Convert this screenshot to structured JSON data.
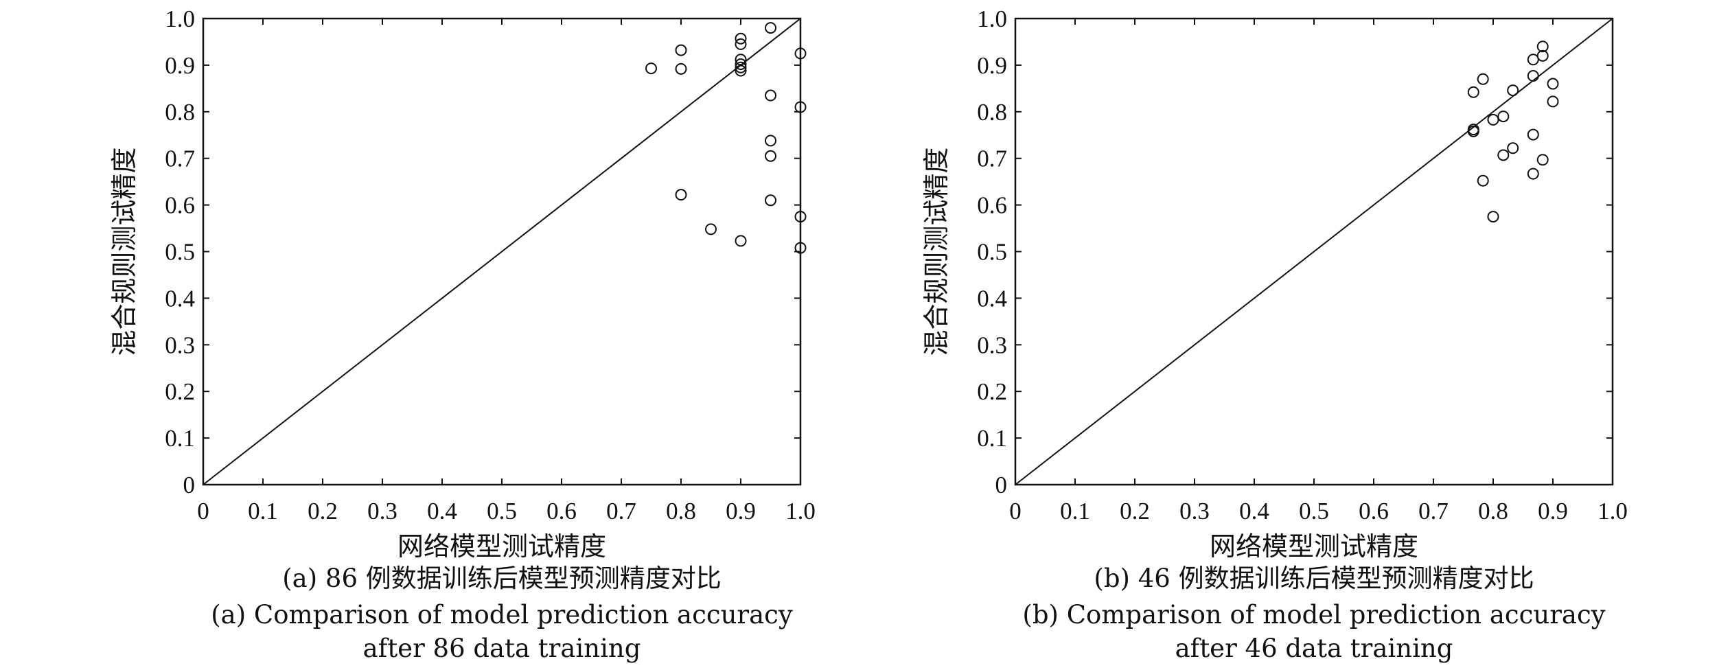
{
  "chart_data": [
    {
      "type": "scatter",
      "xlabel": "网络模型测试精度",
      "ylabel": "混合规则测试精度",
      "xlim": [
        0,
        1.0
      ],
      "ylim": [
        0,
        1.0
      ],
      "x_ticks": [
        "0",
        "0.1",
        "0.2",
        "0.3",
        "0.4",
        "0.5",
        "0.6",
        "0.7",
        "0.8",
        "0.9",
        "1.0"
      ],
      "y_ticks": [
        "0",
        "0.1",
        "0.2",
        "0.3",
        "0.4",
        "0.5",
        "0.6",
        "0.7",
        "0.8",
        "0.9",
        "1.0"
      ],
      "grid": false,
      "reference_line": "y = x",
      "caption": [
        "(a) 86 例数据训练后模型预测精度对比",
        "(a) Comparison of model prediction accuracy",
        "after 86 data training"
      ],
      "points": [
        {
          "x": 0.75,
          "y": 0.893
        },
        {
          "x": 0.8,
          "y": 0.932
        },
        {
          "x": 0.8,
          "y": 0.892
        },
        {
          "x": 0.8,
          "y": 0.622
        },
        {
          "x": 0.85,
          "y": 0.548
        },
        {
          "x": 0.9,
          "y": 0.957
        },
        {
          "x": 0.9,
          "y": 0.945
        },
        {
          "x": 0.9,
          "y": 0.912
        },
        {
          "x": 0.9,
          "y": 0.902
        },
        {
          "x": 0.9,
          "y": 0.895
        },
        {
          "x": 0.9,
          "y": 0.888
        },
        {
          "x": 0.9,
          "y": 0.523
        },
        {
          "x": 0.95,
          "y": 0.98
        },
        {
          "x": 0.95,
          "y": 0.835
        },
        {
          "x": 0.95,
          "y": 0.738
        },
        {
          "x": 0.95,
          "y": 0.705
        },
        {
          "x": 0.95,
          "y": 0.61
        },
        {
          "x": 1.0,
          "y": 0.925
        },
        {
          "x": 1.0,
          "y": 0.81
        },
        {
          "x": 1.0,
          "y": 0.575
        },
        {
          "x": 1.0,
          "y": 0.508
        }
      ]
    },
    {
      "type": "scatter",
      "xlabel": "网络模型测试精度",
      "ylabel": "混合规则测试精度",
      "xlim": [
        0,
        1.0
      ],
      "ylim": [
        0,
        1.0
      ],
      "x_ticks": [
        "0",
        "0.1",
        "0.2",
        "0.3",
        "0.4",
        "0.5",
        "0.6",
        "0.7",
        "0.8",
        "0.9",
        "1.0"
      ],
      "y_ticks": [
        "0",
        "0.1",
        "0.2",
        "0.3",
        "0.4",
        "0.5",
        "0.6",
        "0.7",
        "0.8",
        "0.9",
        "1.0"
      ],
      "grid": false,
      "reference_line": "y = x",
      "caption": [
        "(b) 46 例数据训练后模型预测精度对比",
        "(b) Comparison of model prediction accuracy",
        "after 46 data training"
      ],
      "points": [
        {
          "x": 0.767,
          "y": 0.842
        },
        {
          "x": 0.767,
          "y": 0.762
        },
        {
          "x": 0.767,
          "y": 0.758
        },
        {
          "x": 0.783,
          "y": 0.87
        },
        {
          "x": 0.783,
          "y": 0.652
        },
        {
          "x": 0.8,
          "y": 0.783
        },
        {
          "x": 0.8,
          "y": 0.575
        },
        {
          "x": 0.817,
          "y": 0.79
        },
        {
          "x": 0.817,
          "y": 0.707
        },
        {
          "x": 0.833,
          "y": 0.846
        },
        {
          "x": 0.833,
          "y": 0.722
        },
        {
          "x": 0.867,
          "y": 0.912
        },
        {
          "x": 0.867,
          "y": 0.877
        },
        {
          "x": 0.867,
          "y": 0.751
        },
        {
          "x": 0.867,
          "y": 0.667
        },
        {
          "x": 0.883,
          "y": 0.94
        },
        {
          "x": 0.883,
          "y": 0.92
        },
        {
          "x": 0.883,
          "y": 0.697
        },
        {
          "x": 0.9,
          "y": 0.86
        },
        {
          "x": 0.9,
          "y": 0.822
        }
      ]
    }
  ]
}
